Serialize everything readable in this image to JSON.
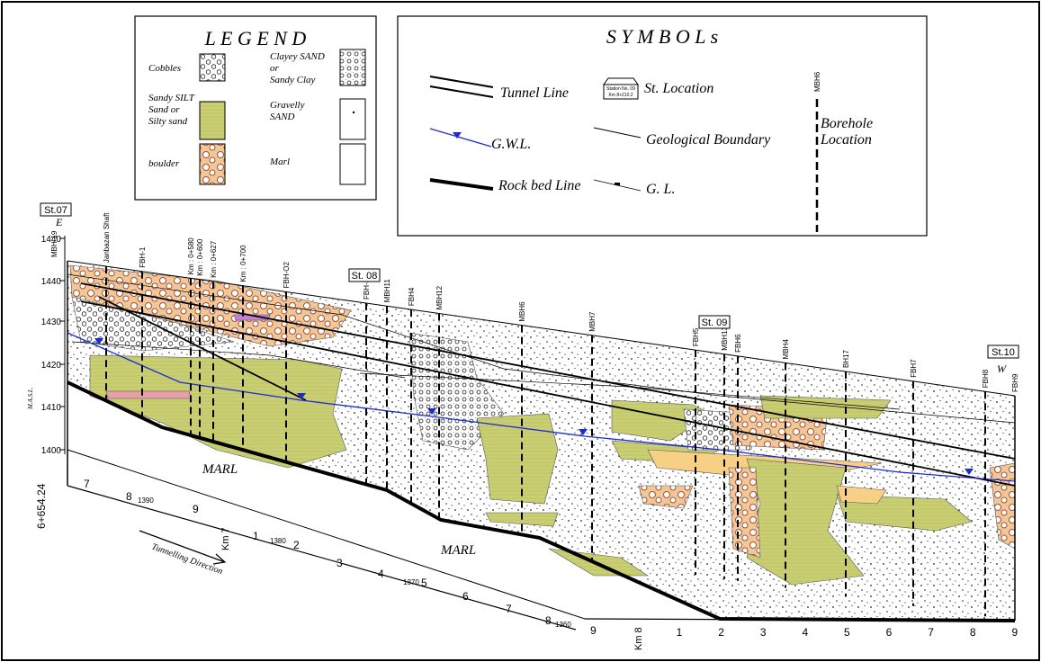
{
  "legend": {
    "title": "L E G E N D",
    "items": [
      [
        "Cobbles"
      ],
      [
        "Sandy SILT",
        "Sand or",
        "Silty sand"
      ],
      [
        "boulder"
      ],
      [
        "Clayey SAND",
        "or",
        "Sandy Clay"
      ],
      [
        "Gravelly",
        "SAND"
      ],
      [
        "Marl"
      ]
    ]
  },
  "symbols": {
    "title": "S Y M B O L s",
    "tunnel_line": "Tunnel Line",
    "st_location": "St. Location",
    "station_icon": [
      "Station No. 09",
      "Km 8+210.2"
    ],
    "gwl": "G.W.L.",
    "geological_boundary": "Geological Boundary",
    "borehole_location": [
      "Borehole",
      "Location"
    ],
    "borehole_example": "MBH6",
    "rock_bed_line": "Rock bed Line",
    "gl": "G. L."
  },
  "section": {
    "stations": [
      "St.07",
      "St. 08",
      "St. 09",
      "St.10"
    ],
    "directions": [
      "E",
      "W"
    ],
    "axis_label": "M.A.S.L.",
    "elevations": [
      "1440",
      "1440",
      "1430",
      "1420",
      "1410",
      "1400"
    ],
    "boreholes": [
      "MBH-19",
      "Janbazan Shaft",
      "FBH-1",
      "Km : 0+580",
      "Km : 0+600",
      "Km : 0+627",
      "Km : 0+700",
      "FBH-O2",
      "FBH-3",
      "MBH11",
      "FBH4",
      "MBH12",
      "MBH6",
      "MBH7",
      "FBH5",
      "MBH13",
      "FBH6",
      "MBH4",
      "BH17",
      "FBH7",
      "FBH8",
      "FBH9"
    ],
    "marl_labels": [
      "MARL",
      "MARL"
    ],
    "chainage_start": "6+654.24",
    "km_labels": [
      "Km 7",
      "Km 8"
    ],
    "tunnelling_direction": "Tunnelling Direction",
    "chainage_upper": [
      "7",
      "8",
      "1390",
      "9",
      "1",
      "1380",
      "2",
      "3",
      "4",
      "1370",
      "5",
      "6",
      "7",
      "8",
      "1360",
      "9"
    ],
    "chainage_lower": [
      "1",
      "2",
      "3",
      "4",
      "5",
      "6",
      "7",
      "8",
      "9"
    ]
  }
}
